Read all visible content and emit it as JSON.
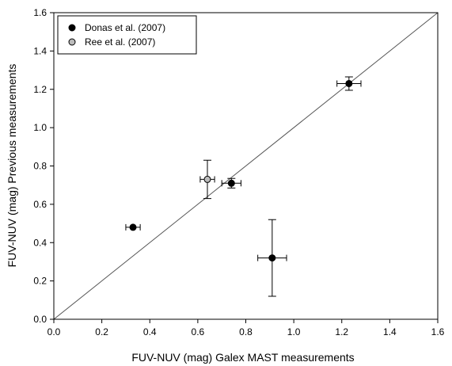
{
  "chart_data": {
    "type": "scatter",
    "xlabel": "FUV-NUV (mag) Galex MAST measurements",
    "ylabel": "FUV-NUV (mag) Previous measurements",
    "xlim": [
      0.0,
      1.6
    ],
    "ylim": [
      0.0,
      1.6
    ],
    "x_ticks": [
      "0.0",
      "0.2",
      "0.4",
      "0.6",
      "0.8",
      "1.0",
      "1.2",
      "1.4",
      "1.6"
    ],
    "y_ticks": [
      "0.0",
      "0.2",
      "0.4",
      "0.6",
      "0.8",
      "1.0",
      "1.2",
      "1.4",
      "1.6"
    ],
    "grid": false,
    "legend_position": "top-left",
    "reference_line": {
      "type": "identity",
      "color": "#555555"
    },
    "series": [
      {
        "name": "Donas et al. (2007)",
        "color": "#000000",
        "points": [
          {
            "x": 0.33,
            "y": 0.48,
            "xerr": 0.03,
            "yerr": 0.0
          },
          {
            "x": 0.74,
            "y": 0.71,
            "xerr": 0.04,
            "yerr": 0.025
          },
          {
            "x": 0.91,
            "y": 0.32,
            "xerr": 0.06,
            "yerr": 0.2
          },
          {
            "x": 1.23,
            "y": 1.23,
            "xerr": 0.05,
            "yerr": 0.035
          }
        ]
      },
      {
        "name": "Ree et al. (2007)",
        "color": "#bbbbbb",
        "points": [
          {
            "x": 0.64,
            "y": 0.73,
            "xerr": 0.03,
            "yerr": 0.1
          }
        ]
      }
    ]
  }
}
